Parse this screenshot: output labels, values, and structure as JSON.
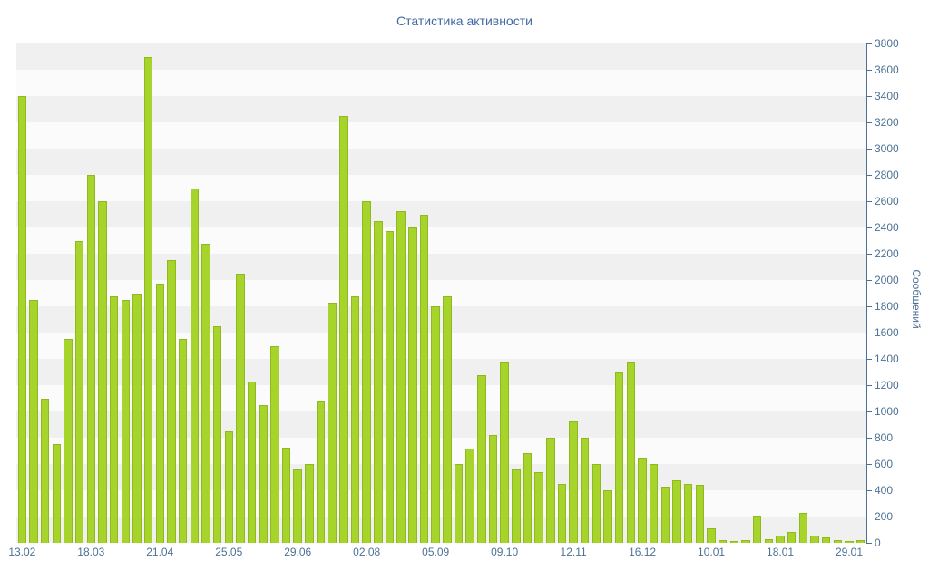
{
  "title": "Статистика активности",
  "chart_data": {
    "type": "bar",
    "title": "Статистика активности",
    "ylabel": "Сообщений",
    "xlabel": "",
    "ylim": [
      0,
      3800
    ],
    "grid": "horizontal-stripes",
    "legend": "none",
    "bar_color": "#a6d42a",
    "bar_border_color": "#90b921",
    "axis_color": "#4d7194",
    "title_color": "#4169a4",
    "stripe_colors": [
      "#f0f0f1",
      "#fbfbfc"
    ],
    "y_ticks": [
      0,
      200,
      400,
      600,
      800,
      1000,
      1200,
      1400,
      1600,
      1800,
      2000,
      2200,
      2400,
      2600,
      2800,
      3000,
      3200,
      3400,
      3600,
      3800
    ],
    "x_tick_labels": [
      "13.02",
      "18.03",
      "21.04",
      "25.05",
      "29.06",
      "02.08",
      "05.09",
      "09.10",
      "12.11",
      "16.12",
      "10.01",
      "18.01",
      "29.01"
    ],
    "x_tick_indices": [
      0,
      6,
      12,
      18,
      24,
      30,
      36,
      42,
      48,
      54,
      60,
      66,
      72
    ],
    "values": [
      3400,
      1850,
      1100,
      750,
      1550,
      2300,
      2800,
      2600,
      1875,
      1850,
      1900,
      3700,
      1975,
      2150,
      1550,
      2700,
      2275,
      1650,
      850,
      2050,
      1225,
      1050,
      1500,
      725,
      560,
      600,
      1075,
      1825,
      3250,
      1875,
      2600,
      2450,
      2375,
      2525,
      2400,
      2500,
      1800,
      1875,
      600,
      720,
      1275,
      820,
      1375,
      560,
      680,
      540,
      800,
      450,
      925,
      800,
      600,
      400,
      1300,
      1375,
      650,
      600,
      430,
      475,
      450,
      440,
      110,
      20,
      15,
      20,
      210,
      30,
      55,
      85,
      230,
      55,
      40,
      20,
      15,
      20
    ]
  }
}
